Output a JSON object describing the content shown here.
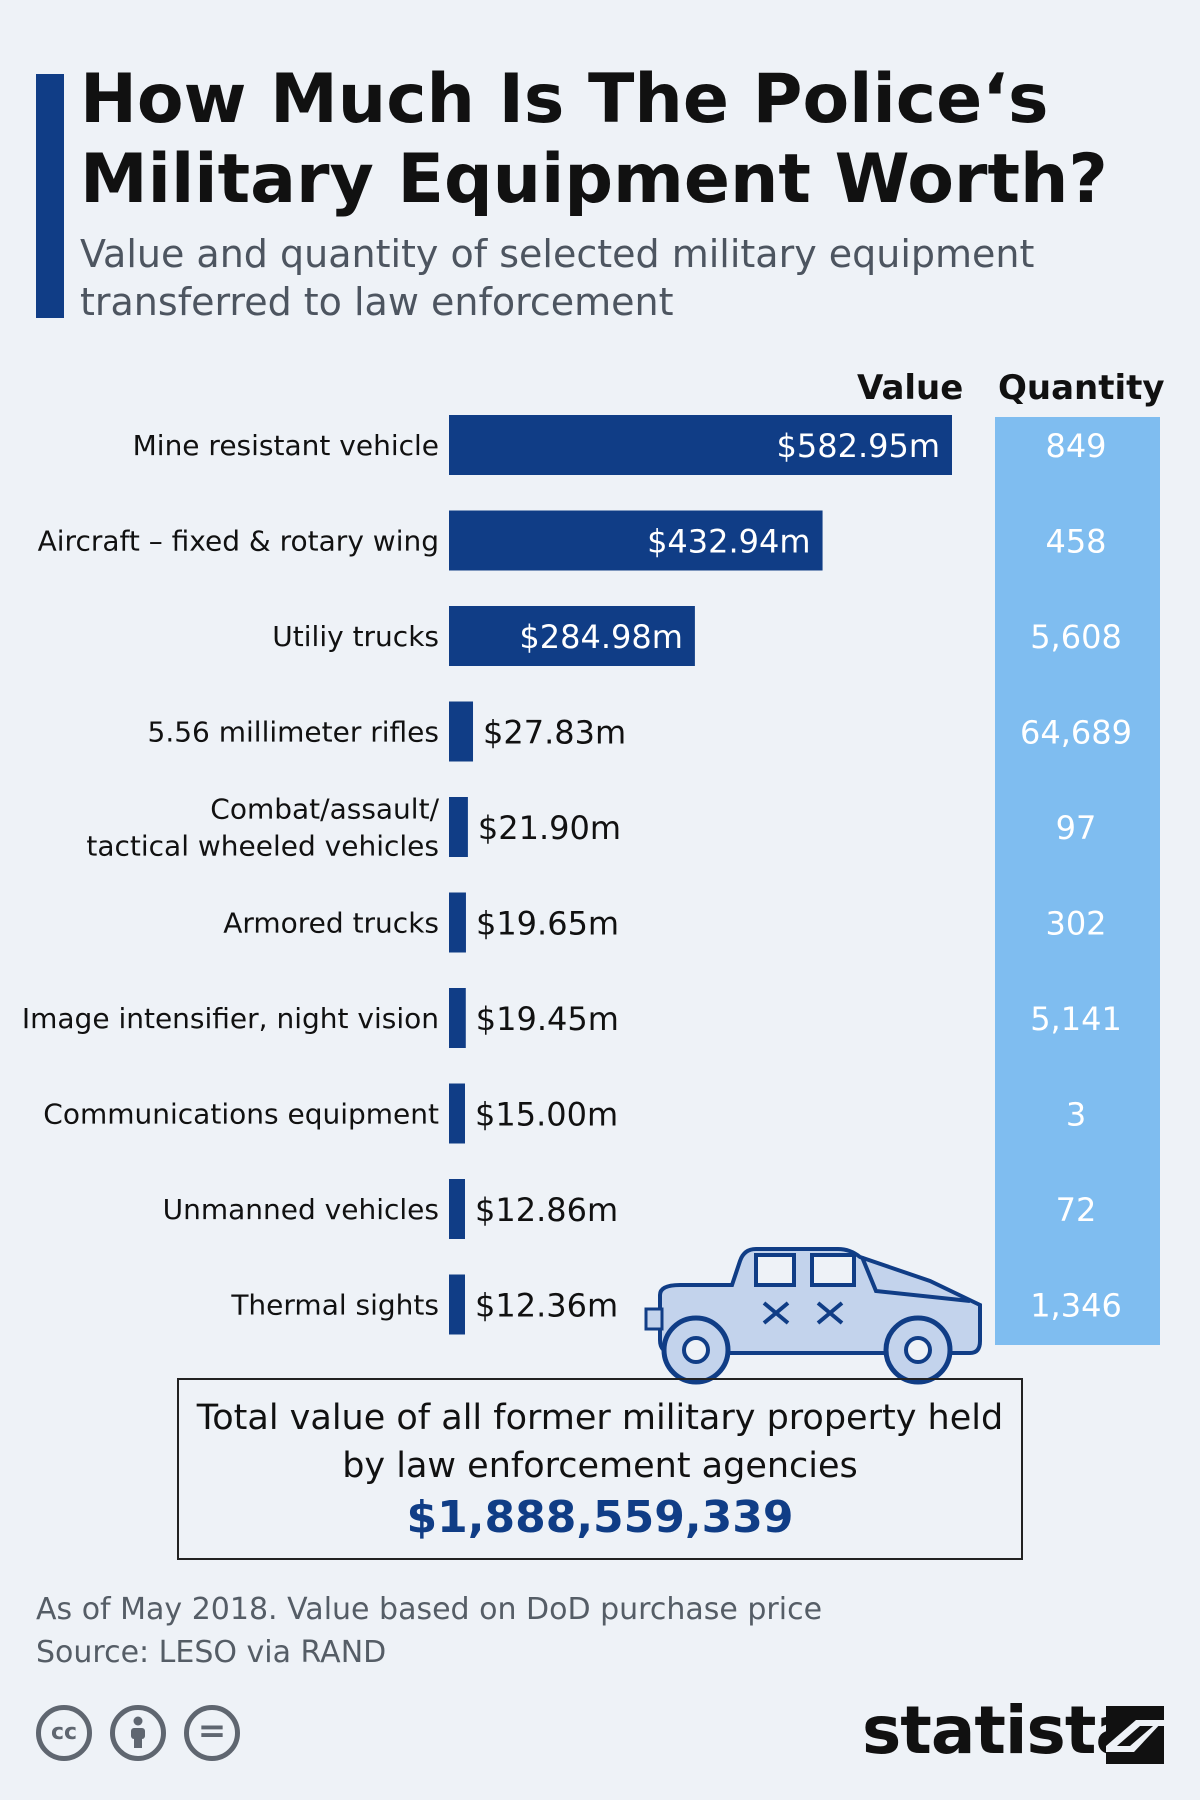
{
  "title_line1": "How Much Is The Police‘s",
  "title_line2": "Military Equipment Worth?",
  "subtitle_line1": "Value and quantity of selected military equipment",
  "subtitle_line2": "transferred to law enforcement",
  "col_value": "Value",
  "col_quantity": "Quantity",
  "total": {
    "line1": "Total value of all former military property held",
    "line2": "by law enforcement agencies",
    "value": "$1,888,559,339"
  },
  "footnote_line1": "As of May 2018. Value based on DoD purchase price",
  "footnote_line2": "Source: LESO via RAND",
  "license_icons": [
    "cc-icon",
    "attribution-icon",
    "no-derivatives-icon"
  ],
  "brand": "statista",
  "colors": {
    "bar": "#103d86",
    "quantity_column": "#7fbdf0",
    "background": "#eef2f7"
  },
  "chart_data": {
    "type": "bar",
    "orientation": "horizontal",
    "categories": [
      [
        "Mine resistant vehicle"
      ],
      [
        "Aircraft – fixed & rotary wing"
      ],
      [
        "Utiliy trucks"
      ],
      [
        "5.56 millimeter rifles"
      ],
      [
        "Combat/assault/",
        "tactical wheeled vehicles"
      ],
      [
        "Armored trucks"
      ],
      [
        "Image intensifier, night vision"
      ],
      [
        "Communications equipment"
      ],
      [
        "Unmanned vehicles"
      ],
      [
        "Thermal sights"
      ]
    ],
    "series": [
      {
        "name": "Value",
        "unit": "$m",
        "values": [
          582.95,
          432.94,
          284.98,
          27.83,
          21.9,
          19.65,
          19.45,
          15.0,
          12.86,
          12.36
        ],
        "labels": [
          "$582.95m",
          "$432.94m",
          "$284.98m",
          "$27.83m",
          "$21.90m",
          "$19.65m",
          "$19.45m",
          "$15.00m",
          "$12.86m",
          "$12.36m"
        ]
      },
      {
        "name": "Quantity",
        "values": [
          849,
          458,
          5608,
          64689,
          97,
          302,
          5141,
          3,
          72,
          1346
        ],
        "labels": [
          "849",
          "458",
          "5,608",
          "64,689",
          "97",
          "302",
          "5,141",
          "3",
          "72",
          "1,346"
        ]
      }
    ]
  }
}
